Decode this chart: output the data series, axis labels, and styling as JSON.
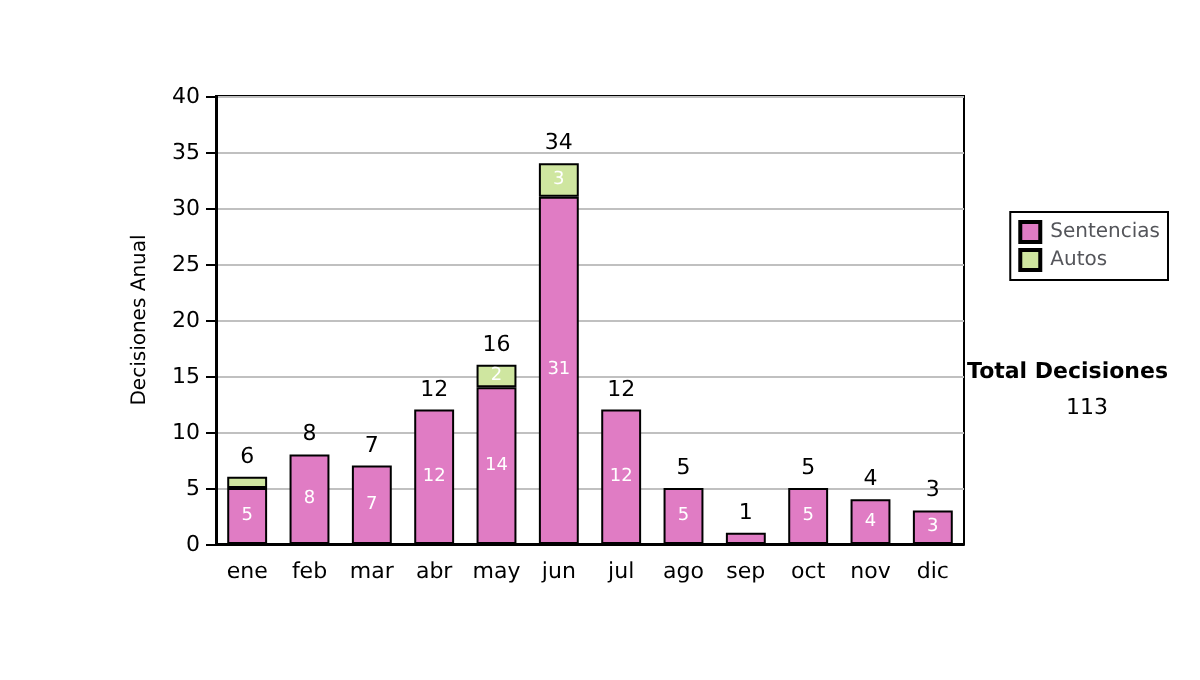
{
  "chart_data": {
    "type": "bar",
    "stacked": true,
    "ylabel": "Decisiones Anual",
    "categories": [
      "ene",
      "feb",
      "mar",
      "abr",
      "may",
      "jun",
      "jul",
      "ago",
      "sep",
      "oct",
      "nov",
      "dic"
    ],
    "series": [
      {
        "name": "Sentencias",
        "color": "#e07cc4",
        "values": [
          5,
          8,
          7,
          12,
          14,
          31,
          12,
          5,
          1,
          5,
          4,
          3
        ],
        "value_labels": [
          "5",
          "8",
          "7",
          "12",
          "14",
          "31",
          "12",
          "5",
          null,
          "5",
          "4",
          "3"
        ]
      },
      {
        "name": "Autos",
        "color": "#cfe6a0",
        "values": [
          1,
          0,
          0,
          0,
          2,
          3,
          0,
          0,
          0,
          0,
          0,
          0
        ],
        "value_labels": [
          null,
          null,
          null,
          null,
          "2",
          "3",
          null,
          null,
          null,
          null,
          null,
          null
        ]
      }
    ],
    "totals": [
      "6",
      "8",
      "7",
      "12",
      "16",
      "34",
      "12",
      "5",
      "1",
      "5",
      "4",
      "3"
    ],
    "ylim": [
      0,
      40
    ],
    "yticks": [
      0,
      5,
      10,
      15,
      20,
      25,
      30,
      35,
      40
    ],
    "grid": "y",
    "legend": "right",
    "annotations": [
      "Total Decisiones",
      "113"
    ]
  }
}
